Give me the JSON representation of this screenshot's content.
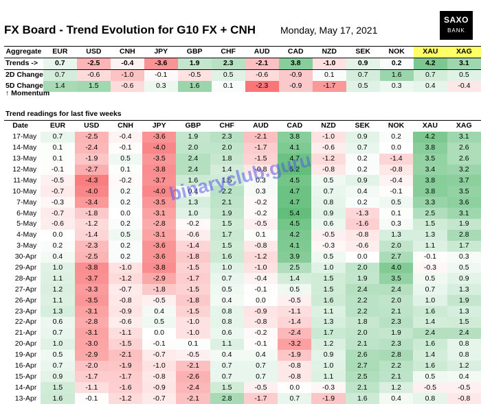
{
  "header": {
    "title": "FX Board - Trend Evolution for G10 FX + CNH",
    "date": "Monday, May 17, 2021",
    "logo_line1": "SAXO",
    "logo_line2": "BANK"
  },
  "currencies": [
    "EUR",
    "USD",
    "CNH",
    "JPY",
    "GBP",
    "CHF",
    "AUD",
    "CAD",
    "NZD",
    "SEK",
    "NOK",
    "XAU",
    "XAG"
  ],
  "aggregate": {
    "header_label": "Aggregate",
    "rows": [
      {
        "label": "Trends ->",
        "values": [
          0.7,
          -2.5,
          -0.4,
          -3.6,
          1.9,
          2.3,
          -2.1,
          3.8,
          -1.0,
          0.9,
          0.2,
          4.2,
          3.1
        ]
      },
      {
        "label": "2D Change",
        "values": [
          0.7,
          -0.6,
          -1.0,
          -0.1,
          -0.5,
          0.5,
          -0.6,
          -0.9,
          0.1,
          0.7,
          1.6,
          0.7,
          0.5
        ]
      },
      {
        "label": "5D Change",
        "values": [
          1.4,
          1.5,
          -0.6,
          0.3,
          1.6,
          0.1,
          -2.3,
          -0.9,
          -1.7,
          0.5,
          0.3,
          0.4,
          -0.4
        ]
      }
    ],
    "momentum_label": "↑ Momentum"
  },
  "weekly": {
    "section_title": "Trend readings for last five weeks",
    "date_header": "Date",
    "rows": [
      {
        "date": "17-May",
        "values": [
          0.7,
          -2.5,
          -0.4,
          -3.6,
          1.9,
          2.3,
          -2.1,
          3.8,
          -1.0,
          0.9,
          0.2,
          4.2,
          3.1
        ]
      },
      {
        "date": "14-May",
        "values": [
          0.1,
          -2.4,
          -0.1,
          -4.0,
          2.0,
          2.0,
          -1.7,
          4.1,
          -0.6,
          0.7,
          0.0,
          3.8,
          2.6
        ]
      },
      {
        "date": "13-May",
        "values": [
          0.1,
          -1.9,
          0.5,
          -3.5,
          2.4,
          1.8,
          -1.5,
          4.7,
          -1.2,
          0.2,
          -1.4,
          3.5,
          2.6
        ]
      },
      {
        "date": "12-May",
        "values": [
          -0.1,
          -2.7,
          0.1,
          -3.8,
          2.4,
          1.4,
          -0.8,
          5.2,
          -0.8,
          0.2,
          -0.8,
          3.4,
          3.2
        ]
      },
      {
        "date": "11-May",
        "values": [
          -0.5,
          -4.3,
          -0.2,
          -3.7,
          1.6,
          1.5,
          0.3,
          4.5,
          0.5,
          0.9,
          -0.4,
          3.8,
          3.7
        ]
      },
      {
        "date": "10-May",
        "values": [
          -0.7,
          -4.0,
          0.2,
          -4.0,
          0.4,
          2.2,
          0.3,
          4.7,
          0.7,
          0.4,
          -0.1,
          3.8,
          3.5
        ]
      },
      {
        "date": "7-May",
        "values": [
          -0.3,
          -3.4,
          0.2,
          -3.5,
          1.3,
          2.1,
          -0.2,
          4.7,
          0.8,
          0.2,
          0.5,
          3.3,
          3.6
        ]
      },
      {
        "date": "6-May",
        "values": [
          -0.7,
          -1.8,
          0.0,
          -3.1,
          1.0,
          1.9,
          -0.2,
          5.4,
          0.9,
          -1.3,
          0.1,
          2.5,
          3.1
        ]
      },
      {
        "date": "5-May",
        "values": [
          -0.6,
          -1.2,
          0.2,
          -2.8,
          -0.2,
          1.5,
          -0.5,
          4.5,
          0.6,
          -1.6,
          0.3,
          1.5,
          1.9
        ]
      },
      {
        "date": "4-May",
        "values": [
          0.0,
          -1.4,
          0.5,
          -3.1,
          -0.6,
          1.7,
          0.1,
          4.2,
          -0.5,
          -0.8,
          1.3,
          1.3,
          2.8
        ]
      },
      {
        "date": "3-May",
        "values": [
          0.2,
          -2.3,
          0.2,
          -3.6,
          -1.4,
          1.5,
          -0.8,
          4.1,
          -0.3,
          -0.6,
          2.0,
          1.1,
          1.7
        ]
      },
      {
        "date": "30-Apr",
        "values": [
          0.4,
          -2.5,
          0.2,
          -3.6,
          -1.8,
          1.6,
          -1.2,
          3.9,
          0.5,
          0.0,
          2.7,
          -0.1,
          0.3
        ]
      },
      {
        "date": "29-Apr",
        "values": [
          1.0,
          -3.8,
          -1.0,
          -3.8,
          -1.5,
          1.0,
          -1.0,
          2.5,
          1.0,
          2.0,
          4.0,
          -0.3,
          0.5
        ]
      },
      {
        "date": "28-Apr",
        "values": [
          1.1,
          -3.7,
          -1.2,
          -2.9,
          -1.7,
          0.7,
          -0.4,
          1.4,
          1.5,
          1.9,
          3.5,
          0.5,
          0.9
        ]
      },
      {
        "date": "27-Apr",
        "values": [
          1.2,
          -3.3,
          -0.7,
          -1.8,
          -1.5,
          0.5,
          -0.1,
          0.5,
          1.5,
          2.4,
          2.4,
          0.7,
          1.3
        ]
      },
      {
        "date": "26-Apr",
        "values": [
          1.1,
          -3.5,
          -0.8,
          -0.5,
          -1.8,
          0.4,
          0.0,
          -0.5,
          1.6,
          2.2,
          2.0,
          1.0,
          1.9
        ]
      },
      {
        "date": "23-Apr",
        "values": [
          1.3,
          -3.1,
          -0.9,
          0.4,
          -1.5,
          0.8,
          -0.9,
          -1.1,
          1.1,
          2.2,
          2.1,
          1.6,
          1.3
        ]
      },
      {
        "date": "22-Apr",
        "values": [
          0.6,
          -2.8,
          -0.6,
          0.5,
          -1.0,
          0.8,
          -0.8,
          -1.4,
          1.3,
          1.8,
          2.3,
          1.4,
          1.5
        ]
      },
      {
        "date": "21-Apr",
        "values": [
          0.7,
          -3.1,
          -1.1,
          0.0,
          -1.0,
          0.6,
          -0.2,
          -2.4,
          1.7,
          2.0,
          1.9,
          2.4,
          2.4
        ]
      },
      {
        "date": "20-Apr",
        "values": [
          1.0,
          -3.0,
          -1.5,
          -0.1,
          0.1,
          1.1,
          -0.1,
          -3.2,
          1.2,
          2.1,
          2.3,
          1.6,
          0.8
        ]
      },
      {
        "date": "19-Apr",
        "values": [
          0.5,
          -2.9,
          -2.1,
          -0.7,
          -0.5,
          0.4,
          0.4,
          -1.9,
          0.9,
          2.6,
          2.8,
          1.4,
          0.8
        ]
      },
      {
        "date": "16-Apr",
        "values": [
          0.7,
          -2.0,
          -1.9,
          -1.0,
          -2.1,
          0.7,
          0.7,
          -0.8,
          1.0,
          2.7,
          2.2,
          1.6,
          1.2
        ]
      },
      {
        "date": "15-Apr",
        "values": [
          0.9,
          -1.7,
          -1.7,
          -0.8,
          -2.6,
          0.7,
          0.7,
          -0.8,
          1.1,
          2.5,
          2.1,
          0.5,
          0.4
        ]
      },
      {
        "date": "14-Apr",
        "values": [
          1.5,
          -1.1,
          -1.6,
          -0.9,
          -2.4,
          1.5,
          -0.5,
          0.0,
          -0.3,
          2.1,
          1.2,
          -0.5,
          -0.5
        ]
      },
      {
        "date": "13-Apr",
        "values": [
          1.6,
          -0.1,
          -1.2,
          -0.7,
          -2.1,
          2.8,
          -1.7,
          0.7,
          -1.9,
          1.6,
          0.4,
          0.8,
          -0.8
        ]
      }
    ]
  },
  "watermark": "binaryclub.guru",
  "colors": {
    "positive": "#63be7b",
    "negative": "#f8696b",
    "neutral": "#ffffff",
    "highlight": "#ffff66"
  }
}
